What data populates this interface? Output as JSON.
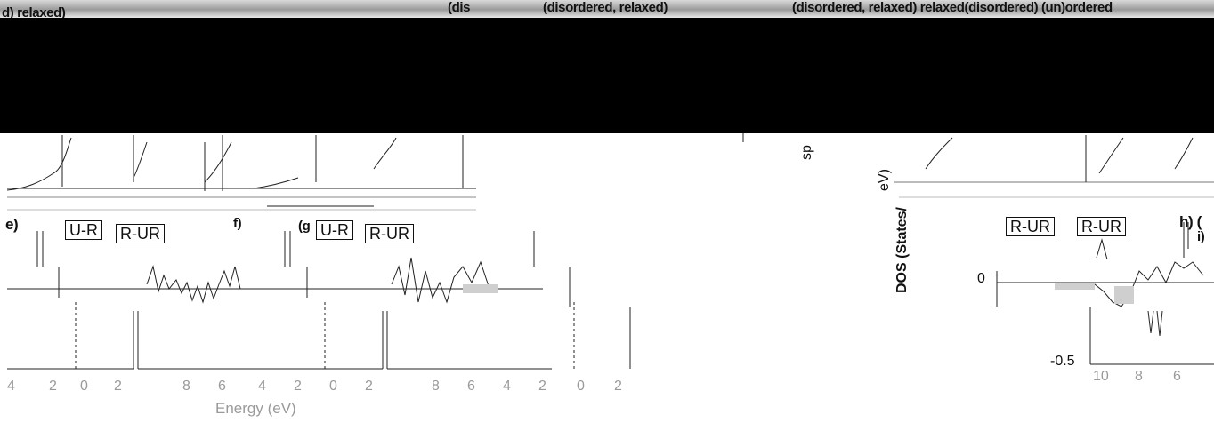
{
  "figure": {
    "colors": {
      "background": "#ffffff",
      "ink": "#111111",
      "mask": "#000000",
      "tick_text": "#9a9a9a"
    },
    "top_labels": {
      "panel_d": "d) relaxed)",
      "mid_1": "(dis",
      "mid_2": "(disordered, relaxed)",
      "right": "(disordered, relaxed) relaxed(disordered) (un)ordered"
    },
    "panel_labels": {
      "e": "e)",
      "f": "f)",
      "g": "(g",
      "h": "h) (",
      "i": "i)"
    },
    "boxed_labels": [
      "R-UR",
      "R-UR",
      "R-UR",
      "R-UR"
    ],
    "boxed_prefix": [
      "U-R",
      "U-R",
      "R-UR"
    ],
    "y_axis": {
      "label": "DOS (States/",
      "label_2": "eV)",
      "label_3": "sp",
      "ticks": [
        "0",
        "-0.5"
      ]
    },
    "x_axis": {
      "label": "Energy (eV)",
      "ticks_left": [
        "4",
        "2",
        "0",
        "2",
        "8",
        "6",
        "4",
        "2",
        "0",
        "2"
      ],
      "ticks_mid": [
        "8",
        "6",
        "4",
        "2",
        "0",
        "2"
      ],
      "ticks_right": [
        "10",
        "8",
        "6"
      ]
    }
  }
}
